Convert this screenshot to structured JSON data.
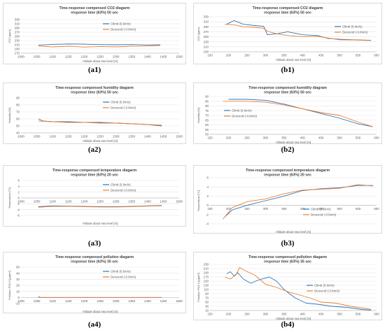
{
  "chart_data": [
    {
      "id": "a1",
      "caption": "(a1)",
      "type": "line",
      "title_html": "Time-response compensed CO<tspan baseline-shift=\"sub\" font-size=\"4\">2</tspan> diagarm",
      "title_line1": "Time-response compensed CO2 diagarm",
      "title_line2": "response time (63%) 50 sec",
      "xlabel": "Altitude about sea level [m]",
      "ylabel": "CO2 [ppm]",
      "xlim": [
        1000,
        1500
      ],
      "ylim": [
        170,
        330
      ],
      "xticks": [
        1000,
        1050,
        1100,
        1150,
        1200,
        1250,
        1300,
        1350,
        1400,
        1450,
        1500
      ],
      "yticks": [
        170,
        190,
        210,
        230,
        250,
        270,
        290,
        310,
        330
      ],
      "legend_pos": "top-center",
      "series": [
        {
          "name": "Climb (0.6m/s)",
          "color": "#2e75b6",
          "x": [
            1055,
            1100,
            1150,
            1200,
            1250,
            1300,
            1350,
            1400,
            1440
          ],
          "y": [
            208,
            212,
            214,
            213,
            211,
            210,
            211,
            209,
            210
          ]
        },
        {
          "name": "Descend (-0.8m/s)",
          "color": "#ed7d31",
          "x": [
            1055,
            1100,
            1150,
            1200,
            1250,
            1300,
            1350,
            1400,
            1440
          ],
          "y": [
            204,
            200,
            203,
            199,
            202,
            200,
            203,
            204,
            206
          ]
        }
      ]
    },
    {
      "id": "b1",
      "caption": "(b1)",
      "type": "line",
      "title_line1": "Time-response compensed CO2 diagarm",
      "title_line2": "response time (63%) 50 sec",
      "xlabel": "Altitude about sea level [m]",
      "ylabel": "CO2 [ppm]",
      "xlim": [
        150,
        600
      ],
      "ylim": [
        190,
        330
      ],
      "xticks": [
        150,
        200,
        250,
        300,
        350,
        400,
        450,
        500,
        550,
        600
      ],
      "yticks": [
        190,
        210,
        230,
        250,
        270,
        290,
        310,
        330
      ],
      "legend_pos": "top-right",
      "series": [
        {
          "name": "Climb (0.6m/s)",
          "color": "#2e75b6",
          "x": [
            195,
            215,
            240,
            270,
            295,
            305,
            330,
            360,
            400,
            440,
            470,
            500,
            540,
            585
          ],
          "y": [
            300,
            315,
            300,
            295,
            292,
            258,
            262,
            270,
            258,
            255,
            243,
            240,
            238,
            236
          ]
        },
        {
          "name": "Descend (-0.8m/s)",
          "color": "#ed7d31",
          "x": [
            190,
            215,
            240,
            270,
            295,
            305,
            330,
            360,
            400,
            440,
            470,
            500,
            540,
            585
          ],
          "y": [
            300,
            298,
            290,
            288,
            284,
            272,
            262,
            255,
            250,
            252,
            245,
            238,
            237,
            235
          ]
        }
      ]
    },
    {
      "id": "a2",
      "caption": "(a2)",
      "type": "line",
      "title_line1": "Time-response compensed humidity diagarm",
      "title_line2": "response time (63%) 50 sec",
      "xlabel": "Altitude about sea level [m]",
      "ylabel": "Humidity [%]",
      "xlim": [
        1000,
        1500
      ],
      "ylim": [
        40,
        90
      ],
      "xticks": [
        1000,
        1050,
        1100,
        1150,
        1200,
        1250,
        1300,
        1350,
        1400,
        1450,
        1500
      ],
      "yticks": [
        40,
        50,
        60,
        70,
        80,
        90
      ],
      "legend_pos": "top-center",
      "series": [
        {
          "name": "Climb (0.6m/s)",
          "color": "#2e75b6",
          "x": [
            1055,
            1070,
            1100,
            1150,
            1200,
            1250,
            1300,
            1350,
            1400,
            1445
          ],
          "y": [
            60,
            57,
            56,
            56,
            55,
            55,
            54,
            53,
            52,
            50
          ]
        },
        {
          "name": "Descend (-0.8m/s)",
          "color": "#ed7d31",
          "x": [
            1055,
            1100,
            1150,
            1200,
            1250,
            1300,
            1350,
            1400,
            1445
          ],
          "y": [
            57,
            56,
            55,
            55,
            54,
            54,
            53,
            52,
            51
          ]
        }
      ]
    },
    {
      "id": "b2",
      "caption": "(b2)",
      "type": "line",
      "title_line1": "Time-response compensed  humidity diagram",
      "title_line2": "response time (63%) 50 sec",
      "xlabel": "Altitude about sea level [m]",
      "ylabel": "Humidity [%]",
      "xlim": [
        150,
        600
      ],
      "ylim": [
        50,
        90
      ],
      "xticks": [
        150,
        200,
        250,
        300,
        350,
        400,
        450,
        500,
        550,
        600
      ],
      "yticks": [
        50,
        55,
        60,
        65,
        70,
        75,
        80,
        85,
        90
      ],
      "legend_pos": "left",
      "series": [
        {
          "name": "Climb (0.6m/s)",
          "color": "#2e75b6",
          "x": [
            200,
            250,
            300,
            350,
            400,
            450,
            500,
            550,
            590
          ],
          "y": [
            87,
            87,
            86,
            82,
            77,
            72,
            67,
            61,
            58
          ]
        },
        {
          "name": "Descend (-0.8m/s)",
          "color": "#ed7d31",
          "x": [
            185,
            250,
            300,
            350,
            400,
            450,
            500,
            550,
            590
          ],
          "y": [
            85,
            85,
            84,
            81,
            77,
            73,
            70,
            63,
            58
          ]
        }
      ]
    },
    {
      "id": "a3",
      "caption": "(a3)",
      "type": "line",
      "title_line1": "Time-response compensed temperature diagarm",
      "title_line2": "response time (63%) 20 sec",
      "xlabel": "Altitude about sea level [m]",
      "ylabel": "Temperature [°C]",
      "xlim": [
        1000,
        1500
      ],
      "ylim": [
        -6,
        6
      ],
      "xticks": [
        1000,
        1050,
        1100,
        1150,
        1200,
        1250,
        1300,
        1350,
        1400,
        1450,
        1500
      ],
      "yticks": [
        -6,
        -4,
        -2,
        0,
        2,
        4,
        6
      ],
      "legend_pos": "top-center",
      "series": [
        {
          "name": "Climb (0.6m/s)",
          "color": "#2e75b6",
          "x": [
            1055,
            1100,
            1150,
            1200,
            1250,
            1300,
            1350,
            1400,
            1445
          ],
          "y": [
            -3.0,
            -2.7,
            -2.8,
            -2.9,
            -3.0,
            -3.0,
            -2.9,
            -2.7,
            -2.6
          ]
        },
        {
          "name": "Descend (-0.8m/s)",
          "color": "#ed7d31",
          "x": [
            1055,
            1100,
            1150,
            1200,
            1250,
            1300,
            1350,
            1400,
            1445
          ],
          "y": [
            -3.2,
            -2.9,
            -2.9,
            -3.0,
            -3.1,
            -3.1,
            -3.0,
            -2.8,
            -2.7
          ]
        }
      ]
    },
    {
      "id": "b3",
      "caption": "(b3)",
      "type": "line",
      "title_line1": "Time-response compensed temperature diagarm",
      "title_line2": "response time (63%) 20 sec",
      "xlabel": "Altitude about sea level [m]",
      "ylabel": "Temperature [°C]",
      "xlim": [
        150,
        600
      ],
      "ylim": [
        -4,
        6
      ],
      "xticks": [
        150,
        200,
        250,
        300,
        350,
        400,
        450,
        500,
        550,
        600
      ],
      "yticks": [
        -4,
        -2,
        0,
        2,
        4,
        6
      ],
      "legend_pos": "center",
      "series": [
        {
          "name": "Climb (0.6m/s)",
          "color": "#2e75b6",
          "x": [
            190,
            210,
            250,
            300,
            350,
            400,
            450,
            500,
            550,
            590
          ],
          "y": [
            -2.5,
            -1.0,
            0.0,
            1.0,
            2.0,
            3.2,
            3.6,
            3.8,
            4.3,
            4.3
          ]
        },
        {
          "name": "Descend (-0.8m/s)",
          "color": "#ed7d31",
          "x": [
            185,
            210,
            250,
            300,
            350,
            400,
            450,
            500,
            550,
            590
          ],
          "y": [
            -3.0,
            -0.5,
            0.8,
            1.4,
            2.5,
            3.3,
            3.5,
            3.7,
            4.5,
            4.2
          ]
        }
      ]
    },
    {
      "id": "a4",
      "caption": "(a4)",
      "type": "line",
      "title_line1": "Time-response compensed pollution diagarm",
      "title_line2": "response time (63%) 35 sec",
      "xlabel": "Altitude about sea level [m]",
      "ylabel": "Pollution PM2.5 [µg/m³]",
      "xlim": [
        1000,
        1500
      ],
      "ylim": [
        -10,
        50
      ],
      "xticks": [
        1000,
        1050,
        1100,
        1150,
        1200,
        1250,
        1300,
        1350,
        1400,
        1450,
        1500
      ],
      "yticks": [
        -10,
        0,
        10,
        20,
        30,
        40,
        50
      ],
      "legend_pos": "top-center",
      "series": [
        {
          "name": "Climb (0.6m/s)",
          "color": "#2e75b6",
          "x": [
            1055,
            1060,
            1100,
            1150,
            1200,
            1250,
            1300,
            1350,
            1400,
            1445
          ],
          "y": [
            2,
            0,
            0,
            0,
            0,
            0,
            0,
            0,
            0,
            0
          ]
        },
        {
          "name": "Descend (-0.8m/s)",
          "color": "#ed7d31",
          "x": [
            1055,
            1100,
            1150,
            1200,
            1250,
            1300,
            1350,
            1400,
            1445
          ],
          "y": [
            0,
            0,
            0,
            0,
            0,
            0,
            0,
            0,
            0
          ]
        }
      ]
    },
    {
      "id": "b4",
      "caption": "(b4)",
      "type": "line",
      "title_line1": "Time-response compensed pollution diagarm",
      "title_line2": "response time (63%) 35 sec",
      "xlabel": "Altitude about sea level [m]",
      "ylabel": "Pollution PM2.5 [µg/m³]",
      "xlim": [
        150,
        600
      ],
      "ylim": [
        10,
        230
      ],
      "xticks": [
        150,
        200,
        250,
        300,
        350,
        400,
        450,
        500,
        550,
        600
      ],
      "yticks": [
        10,
        30,
        50,
        70,
        90,
        110,
        130,
        150,
        170,
        190,
        210,
        230
      ],
      "legend_pos": "right",
      "series": [
        {
          "name": "Climb (0.6m/s)",
          "color": "#2e75b6",
          "x": [
            195,
            205,
            215,
            225,
            240,
            260,
            280,
            310,
            330,
            350,
            380,
            410,
            440,
            480,
            520,
            560,
            585
          ],
          "y": [
            185,
            195,
            175,
            190,
            160,
            140,
            155,
            170,
            150,
            110,
            70,
            45,
            40,
            30,
            25,
            15,
            12
          ]
        },
        {
          "name": "Descend (-0.8m/s)",
          "color": "#ed7d31",
          "x": [
            190,
            205,
            220,
            230,
            245,
            270,
            300,
            330,
            360,
            390,
            420,
            450,
            490,
            530,
            570,
            585
          ],
          "y": [
            170,
            160,
            180,
            215,
            200,
            180,
            135,
            120,
            100,
            85,
            70,
            50,
            45,
            30,
            20,
            15
          ]
        }
      ]
    }
  ]
}
